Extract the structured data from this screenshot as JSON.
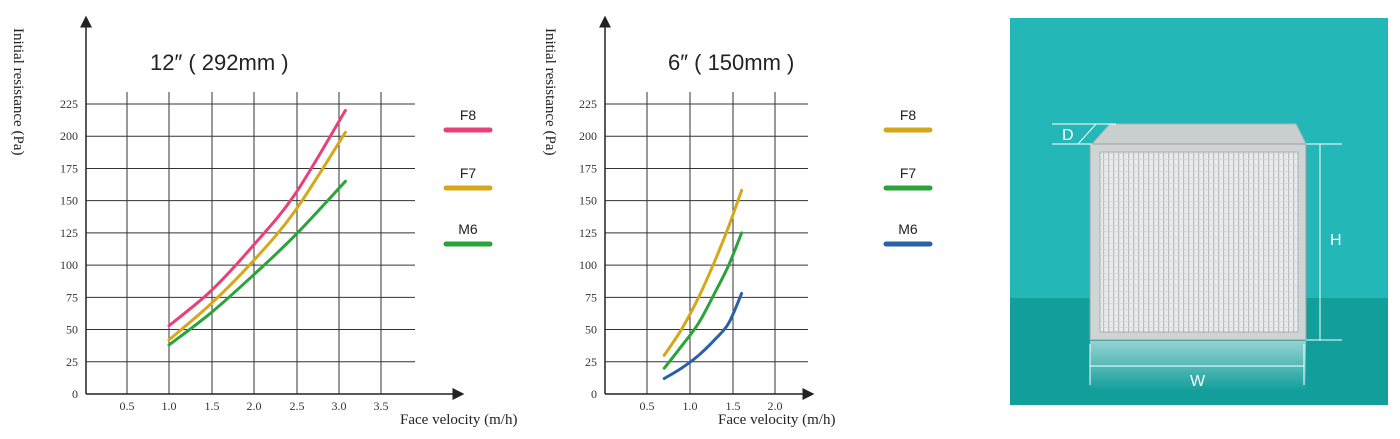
{
  "chart_data": [
    {
      "type": "line",
      "title": "12″ ( 292mm )",
      "xlabel": "Face velocity (m/h)",
      "ylabel": "Initial resistance (Pa)",
      "xlim": [
        0,
        3.5
      ],
      "ylim": [
        0,
        225
      ],
      "x_ticks": [
        "0.5",
        "1.0",
        "1.5",
        "2.0",
        "2.5",
        "3.0",
        "3.5"
      ],
      "y_ticks": [
        "0",
        "25",
        "50",
        "75",
        "100",
        "125",
        "150",
        "175",
        "200",
        "225"
      ],
      "grid": true,
      "legend_position": "right",
      "series": [
        {
          "name": "F8",
          "color": "#e8407a",
          "x": [
            1.0,
            1.5,
            2.0,
            2.5,
            3.1
          ],
          "y": [
            53,
            80,
            115,
            155,
            220
          ]
        },
        {
          "name": "F7",
          "color": "#d4a81a",
          "x": [
            1.0,
            1.5,
            2.0,
            2.5,
            3.1
          ],
          "y": [
            42,
            70,
            103,
            142,
            203
          ]
        },
        {
          "name": "M6",
          "color": "#2aa33b",
          "x": [
            1.0,
            1.5,
            2.0,
            2.5,
            3.1
          ],
          "y": [
            38,
            63,
            92,
            123,
            165
          ]
        }
      ]
    },
    {
      "type": "line",
      "title": "6″ ( 150mm )",
      "xlabel": "Face velocity (m/h)",
      "ylabel": "Initial resistance (Pa)",
      "xlim": [
        0,
        2.5
      ],
      "ylim": [
        0,
        225
      ],
      "x_ticks": [
        "0.5",
        "1.0",
        "1.5",
        "2.0"
      ],
      "y_ticks": [
        "0",
        "25",
        "50",
        "75",
        "100",
        "125",
        "150",
        "175",
        "200",
        "225"
      ],
      "grid": true,
      "legend_position": "right",
      "series": [
        {
          "name": "F8",
          "color": "#d4a81a",
          "x": [
            0.7,
            0.9,
            1.1,
            1.3,
            1.45,
            1.6
          ],
          "y": [
            30,
            50,
            75,
            105,
            130,
            158
          ]
        },
        {
          "name": "F7",
          "color": "#2aa33b",
          "x": [
            0.7,
            0.9,
            1.1,
            1.3,
            1.45,
            1.6
          ],
          "y": [
            20,
            37,
            55,
            80,
            100,
            125
          ]
        },
        {
          "name": "M6",
          "color": "#2a62a8",
          "x": [
            0.7,
            0.9,
            1.1,
            1.3,
            1.45,
            1.6
          ],
          "y": [
            12,
            20,
            30,
            43,
            55,
            78
          ]
        }
      ]
    }
  ],
  "product_image": {
    "background_color": "#24b7b7",
    "floor_color": "#129e9b",
    "dimension_labels": {
      "depth": "D",
      "height": "H",
      "width": "W"
    }
  }
}
